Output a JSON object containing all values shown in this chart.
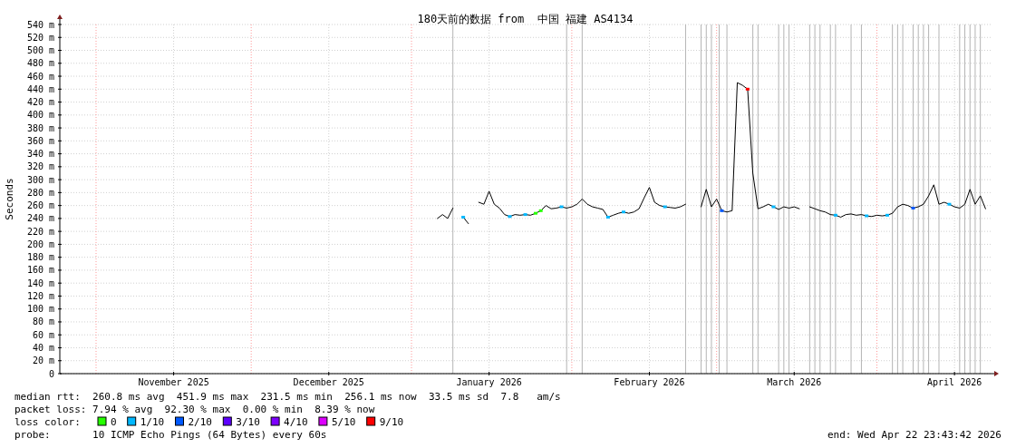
{
  "chart_data": {
    "type": "line",
    "title": "180天前的数据 from  中国 福建 AS4134",
    "ylabel": "Seconds",
    "xlim": [
      "2025-10-24T23:43",
      "2026-04-22T23:43"
    ],
    "xticks": [
      {
        "value": "2025-11-16",
        "label": "November 2025"
      },
      {
        "value": "2025-12-16",
        "label": "December 2025"
      },
      {
        "value": "2026-01-16",
        "label": "January 2026"
      },
      {
        "value": "2026-02-16",
        "label": "February 2026"
      },
      {
        "value": "2026-03-16",
        "label": "March 2026"
      },
      {
        "value": "2026-04-16",
        "label": "April 2026"
      }
    ],
    "ylim": [
      0,
      540
    ],
    "yticks": [
      {
        "value": 0,
        "label": "0"
      },
      {
        "value": 20,
        "label": "20 m"
      },
      {
        "value": 40,
        "label": "40 m"
      },
      {
        "value": 60,
        "label": "60 m"
      },
      {
        "value": 80,
        "label": "80 m"
      },
      {
        "value": 100,
        "label": "100 m"
      },
      {
        "value": 120,
        "label": "120 m"
      },
      {
        "value": 140,
        "label": "140 m"
      },
      {
        "value": 160,
        "label": "160 m"
      },
      {
        "value": 180,
        "label": "180 m"
      },
      {
        "value": 200,
        "label": "200 m"
      },
      {
        "value": 220,
        "label": "220 m"
      },
      {
        "value": 240,
        "label": "240 m"
      },
      {
        "value": 260,
        "label": "260 m"
      },
      {
        "value": 280,
        "label": "280 m"
      },
      {
        "value": 300,
        "label": "300 m"
      },
      {
        "value": 320,
        "label": "320 m"
      },
      {
        "value": 340,
        "label": "340 m"
      },
      {
        "value": 360,
        "label": "360 m"
      },
      {
        "value": 380,
        "label": "380 m"
      },
      {
        "value": 400,
        "label": "400 m"
      },
      {
        "value": 420,
        "label": "420 m"
      },
      {
        "value": 440,
        "label": "440 m"
      },
      {
        "value": 460,
        "label": "460 m"
      },
      {
        "value": 480,
        "label": "480 m"
      },
      {
        "value": 500,
        "label": "500 m"
      },
      {
        "value": 520,
        "label": "520 m"
      },
      {
        "value": 540,
        "label": "540 m"
      }
    ],
    "grid": true,
    "legend": "bottom",
    "x": [
      "2026-01-06",
      "2026-01-07",
      "2026-01-08",
      "2026-01-09",
      "2026-01-10",
      "2026-01-11",
      "2026-01-12",
      "2026-01-13",
      "2026-01-14",
      "2026-01-15",
      "2026-01-16",
      "2026-01-17",
      "2026-01-18",
      "2026-01-19",
      "2026-01-20",
      "2026-01-21",
      "2026-01-22",
      "2026-01-23",
      "2026-01-24",
      "2026-01-25",
      "2026-01-26",
      "2026-01-27",
      "2026-01-28",
      "2026-01-29",
      "2026-01-30",
      "2026-01-31",
      "2026-02-01",
      "2026-02-02",
      "2026-02-03",
      "2026-02-04",
      "2026-02-05",
      "2026-02-06",
      "2026-02-07",
      "2026-02-08",
      "2026-02-09",
      "2026-02-10",
      "2026-02-11",
      "2026-02-12",
      "2026-02-13",
      "2026-02-14",
      "2026-02-15",
      "2026-02-16",
      "2026-02-17",
      "2026-02-18",
      "2026-02-19",
      "2026-02-20",
      "2026-02-21",
      "2026-02-22",
      "2026-02-23",
      "2026-02-24",
      "2026-02-25",
      "2026-02-26",
      "2026-02-27",
      "2026-02-28",
      "2026-03-01",
      "2026-03-02",
      "2026-03-03",
      "2026-03-04",
      "2026-03-05",
      "2026-03-06",
      "2026-03-07",
      "2026-03-08",
      "2026-03-09",
      "2026-03-10",
      "2026-03-11",
      "2026-03-12",
      "2026-03-13",
      "2026-03-14",
      "2026-03-15",
      "2026-03-16",
      "2026-03-17",
      "2026-03-18",
      "2026-03-19",
      "2026-03-20",
      "2026-03-21",
      "2026-03-22",
      "2026-03-23",
      "2026-03-24",
      "2026-03-25",
      "2026-03-26",
      "2026-03-27",
      "2026-03-28",
      "2026-03-29",
      "2026-03-30",
      "2026-03-31",
      "2026-04-01",
      "2026-04-02",
      "2026-04-03",
      "2026-04-04",
      "2026-04-05",
      "2026-04-06",
      "2026-04-07",
      "2026-04-08",
      "2026-04-09",
      "2026-04-10",
      "2026-04-11",
      "2026-04-12",
      "2026-04-13",
      "2026-04-14",
      "2026-04-15",
      "2026-04-16",
      "2026-04-17",
      "2026-04-18",
      "2026-04-19",
      "2026-04-20",
      "2026-04-21",
      "2026-04-22"
    ],
    "series": [
      {
        "color": "#000000",
        "values": [
          240,
          246,
          240,
          256,
          null,
          242,
          232,
          null,
          265,
          262,
          282,
          262,
          256,
          246,
          243,
          246,
          245,
          246,
          245,
          248,
          252,
          260,
          255,
          256,
          258,
          256,
          258,
          262,
          270,
          262,
          258,
          256,
          254,
          242,
          245,
          248,
          250,
          248,
          250,
          255,
          272,
          288,
          265,
          260,
          258,
          257,
          256,
          258,
          262,
          null,
          null,
          258,
          285,
          258,
          270,
          252,
          250,
          252,
          450,
          446,
          440,
          310,
          255,
          258,
          262,
          258,
          254,
          258,
          256,
          258,
          255,
          null,
          258,
          255,
          252,
          250,
          246,
          245,
          242,
          246,
          247,
          245,
          246,
          244,
          243,
          245,
          244,
          245,
          248,
          258,
          262,
          260,
          256,
          258,
          262,
          275,
          292,
          262,
          265,
          262,
          258,
          256,
          262,
          285,
          262,
          275,
          255
        ]
      },
      {
        "type": "scatter",
        "name": "0",
        "color": "#26ff00",
        "x": [
          "2026-01-25",
          "2026-01-26"
        ],
        "values": [
          248,
          252
        ]
      },
      {
        "type": "scatter",
        "name": "1/10",
        "color": "#00b8ff",
        "x": [
          "2026-01-11",
          "2026-01-20",
          "2026-01-23",
          "2026-01-30",
          "2026-02-08",
          "2026-02-11",
          "2026-02-19",
          "2026-03-12",
          "2026-03-24",
          "2026-03-30",
          "2026-04-03",
          "2026-04-15"
        ],
        "values": [
          242,
          243,
          246,
          258,
          242,
          250,
          258,
          258,
          245,
          244,
          245,
          262
        ]
      },
      {
        "type": "scatter",
        "name": "2/10",
        "color": "#0059ff",
        "x": [
          "2026-03-02",
          "2026-04-08"
        ],
        "values": [
          252,
          256
        ]
      },
      {
        "type": "scatter",
        "name": "3/10",
        "color": "#5e00ff",
        "values": [
          null,
          null,
          null,
          null,
          null,
          null,
          null,
          null,
          null,
          null,
          null,
          null,
          null,
          null,
          null,
          null,
          null,
          null,
          null,
          null,
          null,
          null,
          null,
          null,
          null,
          null,
          null,
          null,
          null,
          null,
          null,
          null,
          null,
          null,
          null,
          null,
          null,
          null,
          null,
          null,
          null,
          null,
          null,
          null,
          null,
          null,
          null,
          null,
          null,
          null,
          null,
          null,
          null,
          null,
          null,
          null,
          null,
          null,
          null,
          null,
          null,
          null,
          null,
          null,
          null,
          null,
          null,
          null,
          null,
          null,
          null,
          null,
          null,
          null,
          null,
          null,
          null,
          null,
          null,
          null,
          null,
          null,
          null,
          null,
          null,
          null,
          null,
          null,
          null,
          null,
          null,
          null,
          null,
          null,
          null,
          null,
          null,
          null,
          null,
          null,
          null,
          null,
          null,
          null,
          null,
          null,
          null
        ]
      },
      {
        "type": "scatter",
        "name": "4/10",
        "color": "#7e00ff",
        "values": [
          null,
          null,
          null,
          null,
          null,
          null,
          null,
          null,
          null,
          null,
          null,
          null,
          null,
          null,
          null,
          null,
          null,
          null,
          null,
          null,
          null,
          null,
          null,
          null,
          null,
          null,
          null,
          null,
          null,
          null,
          null,
          null,
          null,
          null,
          null,
          null,
          null,
          null,
          null,
          null,
          null,
          null,
          null,
          null,
          null,
          null,
          null,
          null,
          null,
          null,
          null,
          null,
          null,
          null,
          null,
          null,
          null,
          null,
          null,
          null,
          null,
          null,
          null,
          null,
          null,
          null,
          null,
          null,
          null,
          null,
          null,
          null,
          null,
          null,
          null,
          null,
          null,
          null,
          null,
          null,
          null,
          null,
          null,
          null,
          null,
          null,
          null,
          null,
          null,
          null,
          null,
          null,
          null,
          null,
          null,
          null,
          null,
          null,
          null,
          null,
          null,
          null,
          null,
          null,
          null,
          null,
          null
        ]
      },
      {
        "type": "scatter",
        "name": "5/10",
        "color": "#dd00ff",
        "values": [
          null,
          null,
          null,
          null,
          null,
          null,
          null,
          null,
          null,
          null,
          null,
          null,
          null,
          null,
          null,
          null,
          null,
          null,
          null,
          null,
          null,
          null,
          null,
          null,
          null,
          null,
          null,
          null,
          null,
          null,
          null,
          null,
          null,
          null,
          null,
          null,
          null,
          null,
          null,
          null,
          null,
          null,
          null,
          null,
          null,
          null,
          null,
          null,
          null,
          null,
          null,
          null,
          null,
          null,
          null,
          null,
          null,
          null,
          null,
          null,
          null,
          null,
          null,
          null,
          null,
          null,
          null,
          null,
          null,
          null,
          null,
          null,
          null,
          null,
          null,
          null,
          null,
          null,
          null,
          null,
          null,
          null,
          null,
          null,
          null,
          null,
          null,
          null,
          null,
          null,
          null,
          null,
          null,
          null,
          null,
          null,
          null,
          null,
          null,
          null,
          null,
          null,
          null,
          null,
          null,
          null,
          null
        ]
      },
      {
        "type": "scatter",
        "name": "9/10",
        "color": "#ff0000",
        "x": [
          "2026-03-07"
        ],
        "values": [
          440
        ]
      }
    ],
    "ref_lines": [
      {
        "axis": "x",
        "value": "2025-11-01",
        "color": "#ff9999",
        "line_style": "dotted"
      },
      {
        "axis": "x",
        "value": "2025-12-01",
        "color": "#ff9999",
        "line_style": "dotted"
      },
      {
        "axis": "x",
        "value": "2026-01-01",
        "color": "#ff9999",
        "line_style": "dotted"
      },
      {
        "axis": "x",
        "value": "2026-02-01",
        "color": "#ff9999",
        "line_style": "dotted"
      },
      {
        "axis": "x",
        "value": "2026-03-01",
        "color": "#ff9999",
        "line_style": "dotted"
      },
      {
        "axis": "x",
        "value": "2026-04-01",
        "color": "#ff9999",
        "line_style": "dotted"
      },
      {
        "axis": "x",
        "value": "2026-01-09",
        "color": "#b4b4b4"
      },
      {
        "axis": "x",
        "value": "2026-01-31",
        "color": "#b4b4b4"
      },
      {
        "axis": "x",
        "value": "2026-02-03",
        "color": "#b4b4b4"
      },
      {
        "axis": "x",
        "value": "2026-02-23",
        "color": "#b4b4b4"
      },
      {
        "axis": "x",
        "value": "2026-02-26",
        "color": "#b4b4b4"
      },
      {
        "axis": "x",
        "value": "2026-02-27",
        "color": "#b4b4b4"
      },
      {
        "axis": "x",
        "value": "2026-02-28",
        "color": "#b4b4b4"
      },
      {
        "axis": "x",
        "value": "2026-03-01T12:00",
        "color": "#b4b4b4"
      },
      {
        "axis": "x",
        "value": "2026-03-03",
        "color": "#b4b4b4"
      },
      {
        "axis": "x",
        "value": "2026-03-08",
        "color": "#b4b4b4"
      },
      {
        "axis": "x",
        "value": "2026-03-09",
        "color": "#b4b4b4"
      },
      {
        "axis": "x",
        "value": "2026-03-13",
        "color": "#b4b4b4"
      },
      {
        "axis": "x",
        "value": "2026-03-14",
        "color": "#b4b4b4"
      },
      {
        "axis": "x",
        "value": "2026-03-15",
        "color": "#b4b4b4"
      },
      {
        "axis": "x",
        "value": "2026-03-19",
        "color": "#b4b4b4"
      },
      {
        "axis": "x",
        "value": "2026-03-20",
        "color": "#b4b4b4"
      },
      {
        "axis": "x",
        "value": "2026-03-21",
        "color": "#b4b4b4"
      },
      {
        "axis": "x",
        "value": "2026-03-23",
        "color": "#b4b4b4"
      },
      {
        "axis": "x",
        "value": "2026-03-24",
        "color": "#b4b4b4"
      },
      {
        "axis": "x",
        "value": "2026-03-27",
        "color": "#b4b4b4"
      },
      {
        "axis": "x",
        "value": "2026-03-29",
        "color": "#b4b4b4"
      },
      {
        "axis": "x",
        "value": "2026-04-04",
        "color": "#b4b4b4"
      },
      {
        "axis": "x",
        "value": "2026-04-05",
        "color": "#b4b4b4"
      },
      {
        "axis": "x",
        "value": "2026-04-06",
        "color": "#b4b4b4"
      },
      {
        "axis": "x",
        "value": "2026-04-08",
        "color": "#b4b4b4"
      },
      {
        "axis": "x",
        "value": "2026-04-09",
        "color": "#b4b4b4"
      },
      {
        "axis": "x",
        "value": "2026-04-10",
        "color": "#b4b4b4"
      },
      {
        "axis": "x",
        "value": "2026-04-11",
        "color": "#b4b4b4"
      },
      {
        "axis": "x",
        "value": "2026-04-13",
        "color": "#b4b4b4"
      },
      {
        "axis": "x",
        "value": "2026-04-17",
        "color": "#b4b4b4"
      },
      {
        "axis": "x",
        "value": "2026-04-18",
        "color": "#b4b4b4"
      },
      {
        "axis": "x",
        "value": "2026-04-19",
        "color": "#b4b4b4"
      },
      {
        "axis": "x",
        "value": "2026-04-20",
        "color": "#b4b4b4"
      },
      {
        "axis": "x",
        "value": "2026-04-21",
        "color": "#b4b4b4"
      }
    ],
    "annotations": [
      "median rtt:  260.8 ms avg  451.9 ms max  231.5 ms min  256.1 ms now  33.5 ms sd  7.8   am/s",
      "packet loss: 7.94 % avg  92.30 % max  0.00 % min  8.39 % now",
      "loss color:",
      "probe:       10 ICMP Echo Pings (64 Bytes) every 60s",
      "end: Wed Apr 22 23:43:42 2026"
    ]
  }
}
